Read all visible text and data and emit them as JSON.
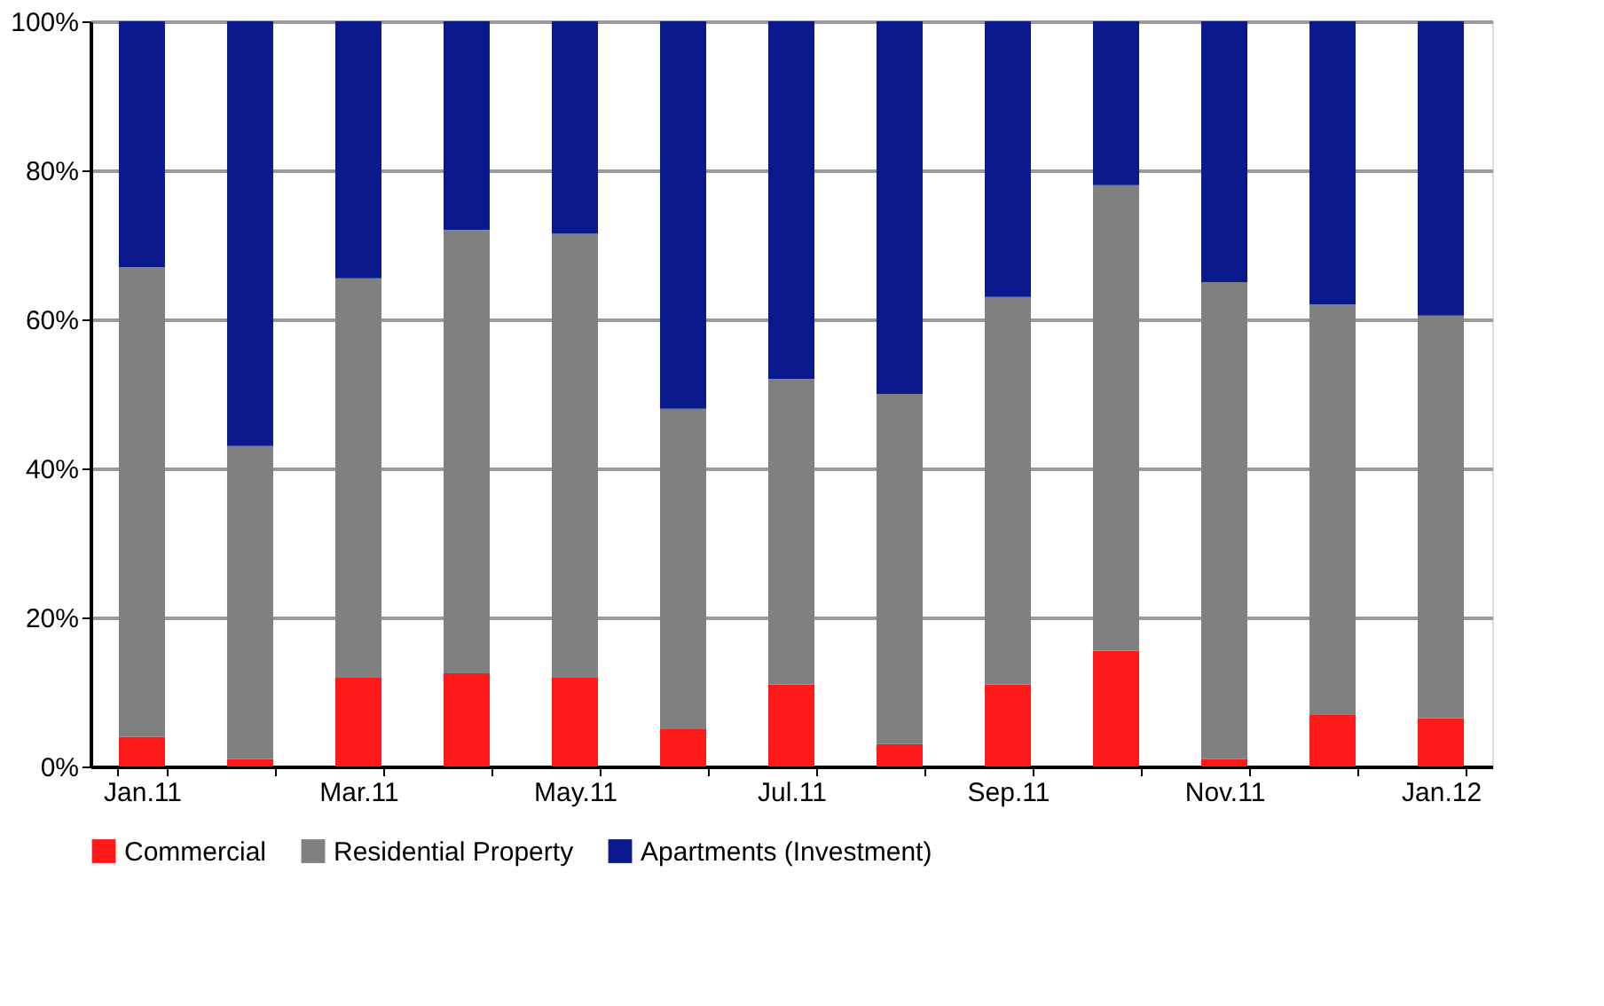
{
  "chart_data": {
    "type": "bar",
    "stacked": true,
    "categories": [
      "Jan.11",
      null,
      "Mar.11",
      null,
      "May.11",
      null,
      "Jul.11",
      null,
      "Sep.11",
      null,
      "Nov.11",
      null,
      "Jan.12"
    ],
    "series": [
      {
        "name": "Commercial",
        "color": "#ff1a1a",
        "values": [
          4,
          1,
          12,
          12.5,
          12,
          5,
          11,
          3,
          11,
          15.5,
          1,
          7,
          6.5
        ]
      },
      {
        "name": "Residential Property",
        "color": "#808080",
        "values": [
          63,
          42,
          53.5,
          59.5,
          59.5,
          43,
          41,
          47,
          52,
          62.5,
          64,
          55,
          54
        ]
      },
      {
        "name": "Apartments (Investment)",
        "color": "#0a1a8c",
        "values": [
          33,
          57,
          34.5,
          28,
          28.5,
          52,
          48,
          50,
          37,
          22,
          35,
          38,
          39.5
        ]
      }
    ],
    "ylim": [
      0,
      100
    ],
    "yticks": [
      {
        "value": 0,
        "label": "0%"
      },
      {
        "value": 20,
        "label": "20%"
      },
      {
        "value": 40,
        "label": "40%"
      },
      {
        "value": 60,
        "label": "60%"
      },
      {
        "value": 80,
        "label": "80%"
      },
      {
        "value": 100,
        "label": "100%"
      }
    ],
    "grid": "y",
    "legend": "bottom"
  }
}
